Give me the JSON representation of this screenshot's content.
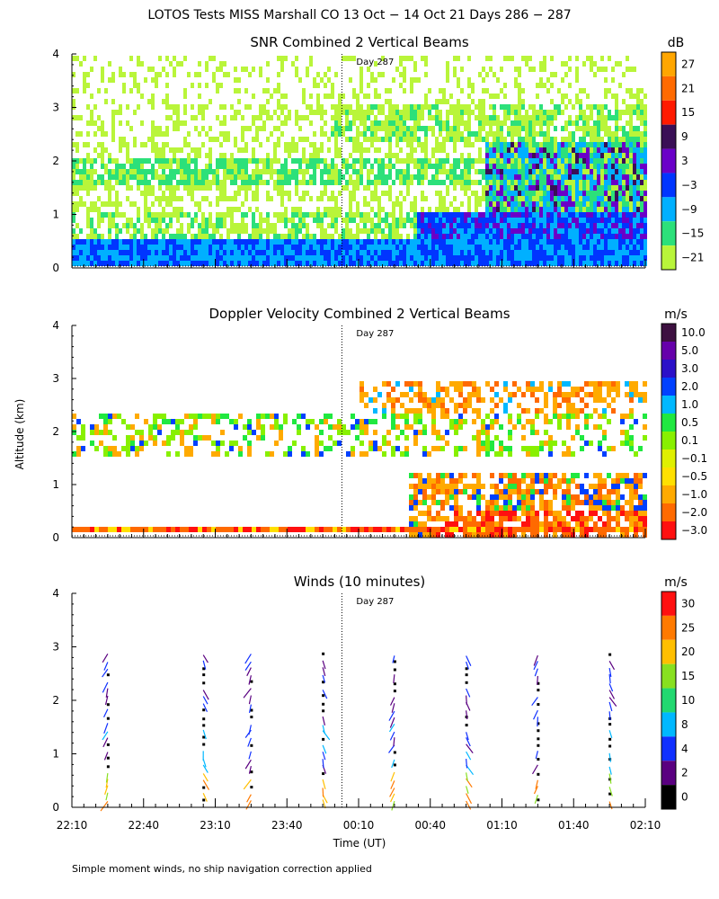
{
  "title": "LOTOS Tests MISS Marshall CO  13 Oct − 14 Oct 21 Days 286 − 287",
  "ylabel": "Altitude (km)",
  "xlabel": "Time (UT)",
  "footnote": "Simple moment winds, no ship navigation correction applied",
  "day_marker": "Day 287",
  "chart_data": [
    {
      "id": "snr",
      "type": "heatmap",
      "title": "SNR Combined 2 Vertical Beams",
      "colorbar_unit": "dB",
      "colorbar_levels": [
        "27",
        "21",
        "15",
        "9",
        "3",
        "−3",
        "−9",
        "−15",
        "−21"
      ],
      "colorbar_colors": [
        "#ffa600",
        "#ff6a00",
        "#ff1a00",
        "#3a0f56",
        "#6a00c8",
        "#0035ff",
        "#00b0ff",
        "#2ce07a",
        "#b9f53a"
      ],
      "xlim": [
        0,
        240
      ],
      "ylim": [
        0,
        4
      ],
      "yticks": [
        "0",
        "1",
        "2",
        "3",
        "4"
      ],
      "day_line_min": 113
    },
    {
      "id": "doppler",
      "type": "heatmap",
      "title": "Doppler Velocity Combined 2 Vertical Beams",
      "colorbar_unit": "m/s",
      "colorbar_levels": [
        "10.0",
        "5.0",
        "3.0",
        "2.0",
        "1.0",
        "0.5",
        "0.1",
        "−0.1",
        "−0.5",
        "−1.0",
        "−2.0",
        "−3.0"
      ],
      "colorbar_colors": [
        "#3d1040",
        "#6600aa",
        "#2b10c8",
        "#0040ff",
        "#00b8ff",
        "#20e840",
        "#88f000",
        "#dff000",
        "#ffe000",
        "#ffaa00",
        "#ff6a00",
        "#ff1010"
      ],
      "xlim": [
        0,
        240
      ],
      "ylim": [
        0,
        4
      ],
      "yticks": [
        "0",
        "1",
        "2",
        "3",
        "4"
      ],
      "day_line_min": 113
    },
    {
      "id": "winds",
      "type": "scatter",
      "title": "Winds (10 minutes)",
      "colorbar_unit": "m/s",
      "colorbar_levels": [
        "30",
        "25",
        "20",
        "15",
        "10",
        "8",
        "4",
        "2",
        "0"
      ],
      "colorbar_colors": [
        "#ff1010",
        "#ff7a00",
        "#ffbf00",
        "#88e020",
        "#22d870",
        "#00b8ff",
        "#1030ff",
        "#5a0080",
        "#000000"
      ],
      "xlim": [
        0,
        240
      ],
      "ylim": [
        0,
        4
      ],
      "yticks": [
        "0",
        "1",
        "2",
        "3",
        "4"
      ],
      "day_line_min": 113,
      "profile_times_min": [
        15,
        55,
        75,
        105,
        135,
        165,
        195,
        225
      ],
      "xticks": [
        "22:10",
        "22:40",
        "23:10",
        "23:40",
        "00:10",
        "00:40",
        "01:10",
        "01:40",
        "02:10"
      ]
    }
  ]
}
